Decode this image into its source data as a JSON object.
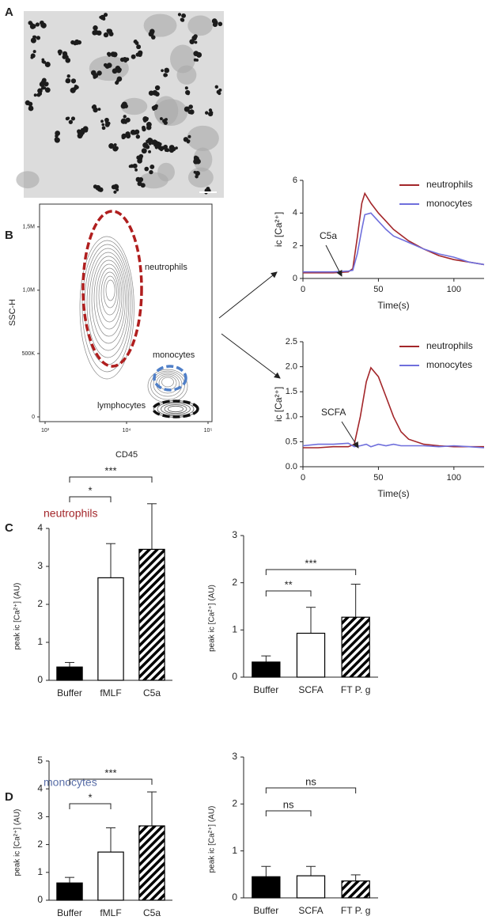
{
  "panel_labels": {
    "a": "A",
    "b": "B",
    "c": "C",
    "d": "D"
  },
  "sections": [
    "neutrophils",
    "monocytes"
  ],
  "chart_data": [
    {
      "type": "contour",
      "x_label": "CD45",
      "y_label": "SSC-H",
      "xscale": "log",
      "xlim": [
        855,
        111800
      ],
      "xticks": [
        {
          "value": 1000,
          "label": "10³"
        },
        {
          "value": 10000,
          "label": "10⁴"
        },
        {
          "value": 100000,
          "label": "10⁵"
        }
      ],
      "ylim": [
        -37500,
        1680000
      ],
      "yticks": [
        0,
        {
          "value": 500000,
          "label": "500K"
        },
        {
          "value": 1000000,
          "label": "1,0M"
        },
        {
          "value": 1500000,
          "label": "1,5M"
        }
      ],
      "gates": [
        {
          "name": "neutrophils",
          "color": "#b01e1e"
        },
        {
          "name": "monocytes",
          "color": "#4f7fc8"
        },
        {
          "name": "lymphocytes",
          "color": "#111111"
        }
      ]
    },
    {
      "type": "line",
      "x_label": "Time(s)",
      "y_label": "ic [Ca²⁺]",
      "annotation": "C5a",
      "x": [
        0,
        10,
        20,
        30,
        33,
        36,
        39,
        41,
        45,
        50,
        55,
        60,
        70,
        80,
        90,
        100,
        110,
        120
      ],
      "series": [
        {
          "name": "neutrophils",
          "color": "#a3262a",
          "values": [
            0.35,
            0.35,
            0.35,
            0.4,
            0.6,
            2.5,
            4.6,
            5.2,
            4.6,
            4.0,
            3.5,
            3.0,
            2.3,
            1.8,
            1.4,
            1.15,
            1.0,
            0.85
          ]
        },
        {
          "name": "monocytes",
          "color": "#6f6fdc",
          "values": [
            0.4,
            0.4,
            0.4,
            0.45,
            0.5,
            1.5,
            3.0,
            3.9,
            4.0,
            3.5,
            3.0,
            2.6,
            2.2,
            1.8,
            1.5,
            1.3,
            1.0,
            0.85
          ]
        }
      ],
      "xlim": [
        0,
        120
      ],
      "xticks": [
        0,
        50,
        100
      ],
      "ylim": [
        0,
        6
      ],
      "yticks": [
        0,
        2,
        4,
        6
      ],
      "legend": "upper right"
    },
    {
      "type": "line",
      "x_label": "Time(s)",
      "y_label": "ic [Ca²⁺]",
      "annotation": "SCFA",
      "x": [
        0,
        10,
        20,
        30,
        34,
        38,
        42,
        45,
        50,
        55,
        60,
        65,
        70,
        80,
        90,
        100,
        110,
        120
      ],
      "series": [
        {
          "name": "neutrophils",
          "color": "#a3262a",
          "values": [
            0.38,
            0.38,
            0.4,
            0.4,
            0.45,
            1.0,
            1.7,
            1.98,
            1.8,
            1.4,
            1.0,
            0.7,
            0.55,
            0.45,
            0.42,
            0.4,
            0.4,
            0.4
          ]
        },
        {
          "name": "monocytes",
          "color": "#6f6fdc",
          "values": [
            0.42,
            0.45,
            0.45,
            0.47,
            0.4,
            0.42,
            0.45,
            0.4,
            0.45,
            0.42,
            0.45,
            0.42,
            0.42,
            0.42,
            0.4,
            0.42,
            0.4,
            0.38
          ]
        }
      ],
      "xlim": [
        0,
        120
      ],
      "xticks": [
        0,
        50,
        100
      ],
      "ylim": [
        0,
        2.5
      ],
      "yticks": [
        {
          "value": 0,
          "label": "0.0"
        },
        0.5,
        {
          "value": 1,
          "label": "1.0"
        },
        1.5,
        {
          "value": 2,
          "label": "2.0"
        },
        2.5
      ],
      "legend": "upper right"
    },
    {
      "type": "bar",
      "y_label": "peak ic [Ca²⁺] (AU)",
      "categories": [
        "Buffer",
        "fMLF",
        "C5a"
      ],
      "values": [
        0.35,
        2.7,
        3.45
      ],
      "errors": [
        0.12,
        0.9,
        1.2
      ],
      "fills": [
        "#000000",
        "#ffffff",
        "hatch"
      ],
      "ylim": [
        0,
        4
      ],
      "yticks": [
        0,
        1,
        2,
        3,
        4
      ],
      "significance": [
        {
          "from": 0,
          "to": 1,
          "label": "*"
        },
        {
          "from": 0,
          "to": 2,
          "label": "***"
        }
      ]
    },
    {
      "type": "bar",
      "y_label": "peak ic [Ca²⁺] (AU)",
      "categories": [
        "Buffer",
        "SCFA",
        "FT P. g"
      ],
      "values": [
        0.32,
        0.93,
        1.27
      ],
      "errors": [
        0.13,
        0.55,
        0.7
      ],
      "fills": [
        "#000000",
        "#ffffff",
        "hatch"
      ],
      "ylim": [
        0,
        3
      ],
      "yticks": [
        0,
        1,
        2,
        3
      ],
      "significance": [
        {
          "from": 0,
          "to": 1,
          "label": "**"
        },
        {
          "from": 0,
          "to": 2,
          "label": "***"
        }
      ]
    },
    {
      "type": "bar",
      "y_label": "peak ic [Ca²⁺] (AU)",
      "categories": [
        "Buffer",
        "fMLF",
        "C5a"
      ],
      "values": [
        0.62,
        1.73,
        2.67
      ],
      "errors": [
        0.2,
        0.87,
        1.22
      ],
      "fills": [
        "#000000",
        "#ffffff",
        "hatch"
      ],
      "ylim": [
        0,
        5
      ],
      "yticks": [
        0,
        1,
        2,
        3,
        4,
        5
      ],
      "significance": [
        {
          "from": 0,
          "to": 1,
          "label": "*"
        },
        {
          "from": 0,
          "to": 2,
          "label": "***"
        }
      ]
    },
    {
      "type": "bar",
      "y_label": "peak ic [Ca²⁺] (AU)",
      "categories": [
        "Buffer",
        "SCFA",
        "FT P. g"
      ],
      "values": [
        0.45,
        0.47,
        0.36
      ],
      "errors": [
        0.22,
        0.2,
        0.13
      ],
      "fills": [
        "#000000",
        "#ffffff",
        "hatch"
      ],
      "ylim": [
        0,
        3
      ],
      "yticks": [
        0,
        1,
        2,
        3
      ],
      "significance": [
        {
          "from": 0,
          "to": 1,
          "label": "ns"
        },
        {
          "from": 0,
          "to": 2,
          "label": "ns"
        }
      ]
    }
  ]
}
